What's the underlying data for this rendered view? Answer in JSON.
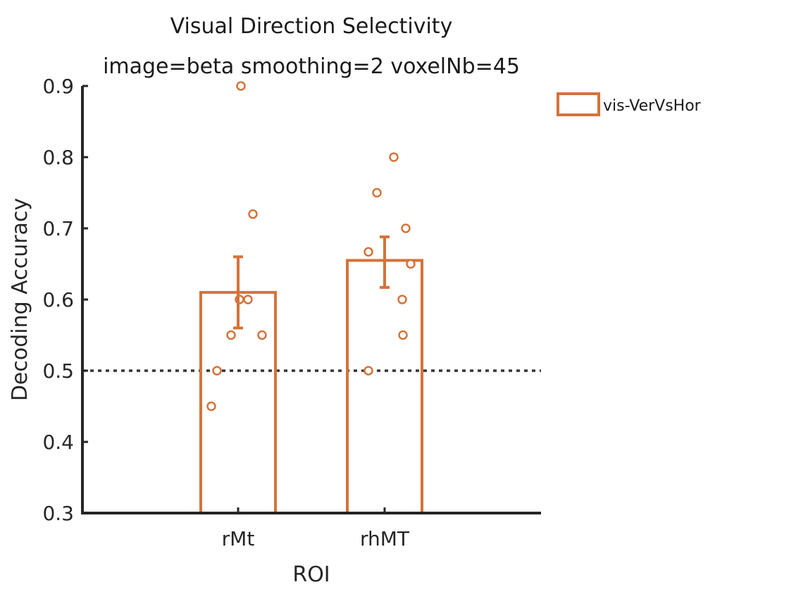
{
  "chart_data": {
    "type": "bar",
    "title": "Visual Direction Selectivity",
    "subtitle": "image=beta smoothing=2 voxelNb=45",
    "xlabel": "ROI",
    "ylabel": "Decoding Accuracy",
    "categories": [
      "rMt",
      "rhMT"
    ],
    "ylim": [
      0.3,
      0.9
    ],
    "yticks": [
      "0.3",
      "0.4",
      "0.5",
      "0.6",
      "0.7",
      "0.8",
      "0.9"
    ],
    "chance_level": 0.5,
    "legend_position": "top-right",
    "series": [
      {
        "name": "vis-VerVsHor",
        "color": "#D4733A",
        "values": [
          0.61,
          0.655
        ],
        "error_low": [
          0.56,
          0.617
        ],
        "error_high": [
          0.66,
          0.688
        ],
        "points": [
          [
            0.45,
            0.5,
            0.55,
            0.6,
            0.6,
            0.55,
            0.72,
            0.9
          ],
          [
            0.5,
            0.667,
            0.75,
            0.8,
            0.6,
            0.55,
            0.7,
            0.65
          ]
        ]
      }
    ]
  }
}
